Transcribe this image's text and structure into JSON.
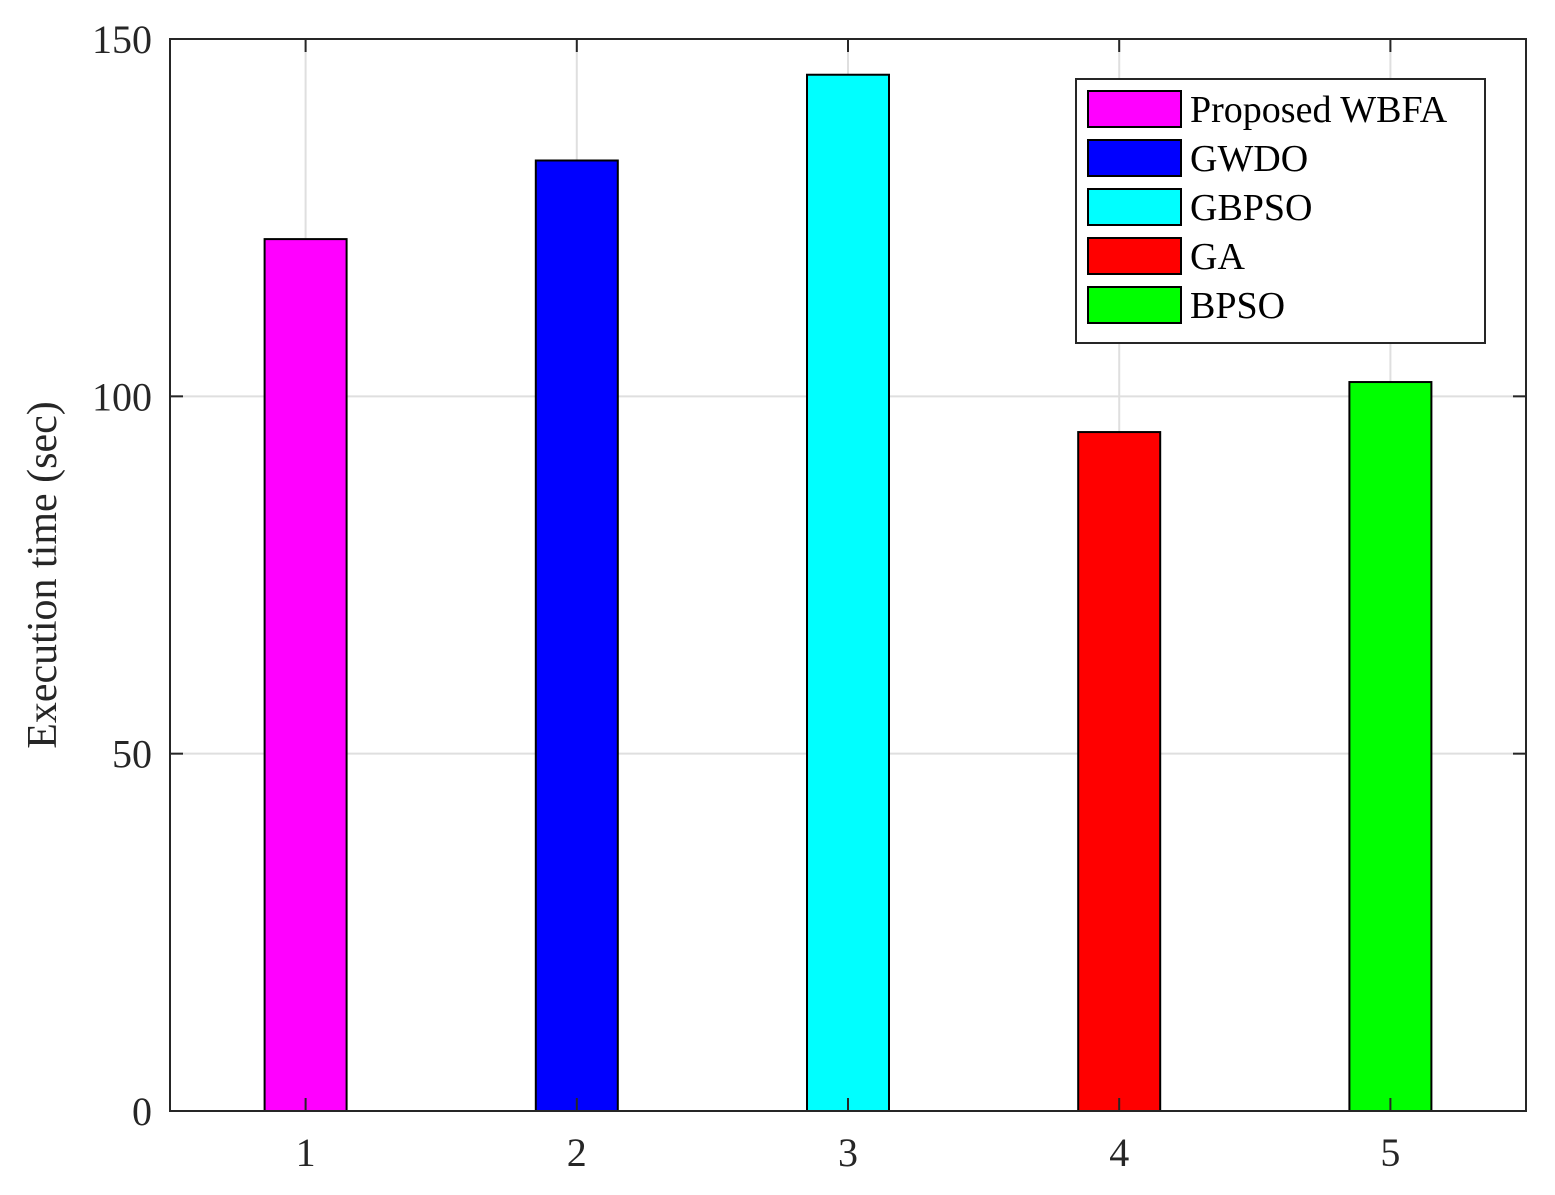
{
  "chart_data": {
    "type": "bar",
    "categories": [
      "1",
      "2",
      "3",
      "4",
      "5"
    ],
    "series": [
      {
        "name": "Proposed WBFA",
        "category": "1",
        "value": 122,
        "color": "#ff00ff"
      },
      {
        "name": "GWDO",
        "category": "2",
        "value": 133,
        "color": "#0000ff"
      },
      {
        "name": "GBPSO",
        "category": "3",
        "value": 145,
        "color": "#00ffff"
      },
      {
        "name": "GA",
        "category": "4",
        "value": 95,
        "color": "#ff0000"
      },
      {
        "name": "BPSO",
        "category": "5",
        "value": 102,
        "color": "#00ff00"
      }
    ],
    "ylabel": "Execution time (sec)",
    "xlabel": "",
    "ylim": [
      0,
      150
    ],
    "yticks": [
      0,
      50,
      100,
      150
    ],
    "grid": true,
    "legend_position": "top-right"
  }
}
